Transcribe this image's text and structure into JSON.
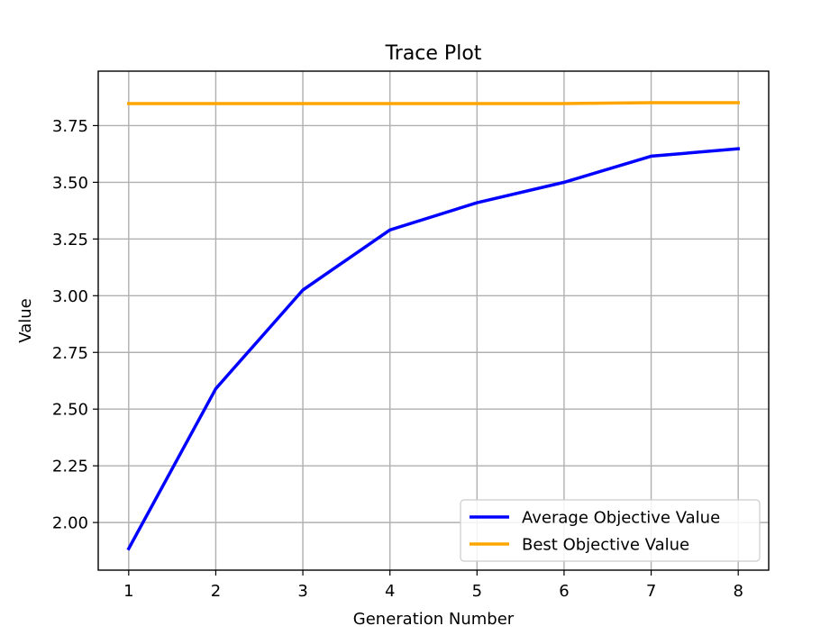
{
  "chart_data": {
    "type": "line",
    "title": "Trace Plot",
    "xlabel": "Generation Number",
    "ylabel": "Value",
    "x": [
      1,
      2,
      3,
      4,
      5,
      6,
      7,
      8
    ],
    "xticks": [
      1,
      2,
      3,
      4,
      5,
      6,
      7,
      8
    ],
    "xtick_labels": [
      "1",
      "2",
      "3",
      "4",
      "5",
      "6",
      "7",
      "8"
    ],
    "yticks": [
      2.0,
      2.25,
      2.5,
      2.75,
      3.0,
      3.25,
      3.5,
      3.75
    ],
    "ytick_labels": [
      "2.00",
      "2.25",
      "2.50",
      "2.75",
      "3.00",
      "3.25",
      "3.50",
      "3.75"
    ],
    "xlim": [
      0.65,
      8.35
    ],
    "ylim": [
      1.79,
      3.99
    ],
    "grid": true,
    "legend_position": "bottom-right",
    "series": [
      {
        "name": "Average Objective Value",
        "color": "#0000ff",
        "values": [
          1.885,
          2.59,
          3.025,
          3.29,
          3.41,
          3.5,
          3.615,
          3.648
        ]
      },
      {
        "name": "Best Objective Value",
        "color": "#ffa500",
        "values": [
          3.847,
          3.847,
          3.847,
          3.847,
          3.847,
          3.847,
          3.851,
          3.851
        ]
      }
    ]
  }
}
